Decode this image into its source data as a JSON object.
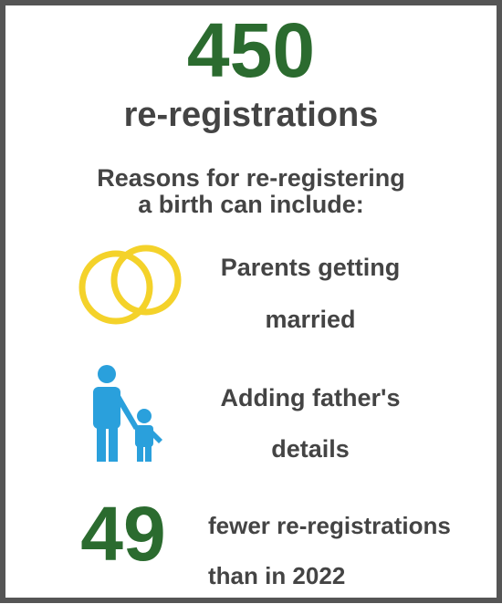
{
  "headline": {
    "number": 450,
    "label": "re-registrations"
  },
  "reasons": {
    "intro": [
      "Reasons for re-registering",
      "a birth can include:"
    ],
    "items": [
      {
        "lines": [
          "Parents getting",
          "married"
        ]
      },
      {
        "lines": [
          "Adding father's",
          "details"
        ]
      }
    ]
  },
  "change": {
    "number": 49,
    "lines": [
      "fewer re-registrations",
      "than in 2022"
    ]
  }
}
